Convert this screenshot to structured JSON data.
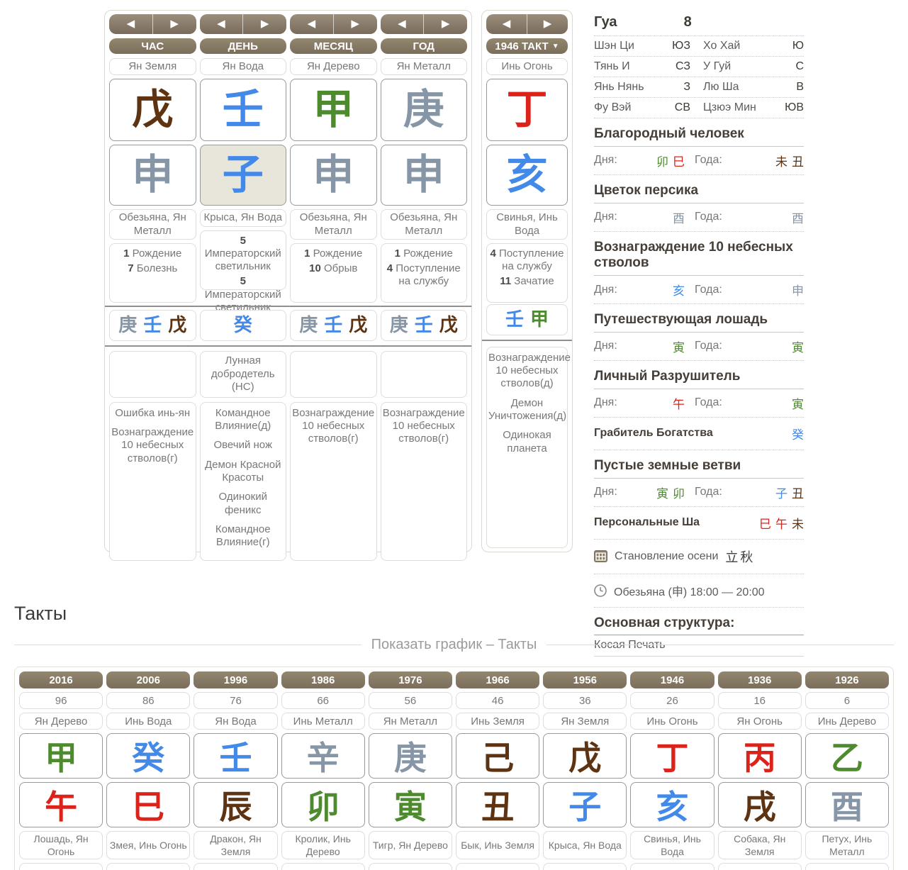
{
  "colors": {
    "wood": "#4e8b2e",
    "fire": "#dc231b",
    "earth": "#5e3312",
    "metal": "#8696a6",
    "water": "#4289e9",
    "ink": "#4a4a4a"
  },
  "nav": {
    "prev": "◀",
    "next": "▶",
    "dropdown": "▼"
  },
  "labels": {
    "day": "Дня:",
    "year": "Года:"
  },
  "pillars": [
    {
      "label": "ЧАС",
      "element": "Ян Земля",
      "stem": {
        "c": "戊",
        "e": "earth"
      },
      "branch": {
        "c": "申",
        "e": "metal"
      },
      "selected": false,
      "animal": "Обезьяна, Ян Металл",
      "qi": [
        {
          "n": "1",
          "t": "Рождение"
        },
        {
          "n": "7",
          "t": "Болезнь"
        }
      ],
      "hidden": [
        {
          "c": "庚",
          "e": "metal"
        },
        {
          "c": "壬",
          "e": "water"
        },
        {
          "c": "戊",
          "e": "earth"
        }
      ],
      "mid": "",
      "features": [
        "Ошибка инь-ян",
        "Вознаграждение 10 небесных стволов(г)"
      ]
    },
    {
      "label": "ДЕНЬ",
      "element": "Ян Вода",
      "stem": {
        "c": "壬",
        "e": "water"
      },
      "branch": {
        "c": "子",
        "e": "water"
      },
      "selected": true,
      "animal": "Крыса, Ян Вода",
      "qi": [
        {
          "n": "5",
          "t": "Императорский светильник"
        },
        {
          "n": "5",
          "t": "Императорский светильник"
        }
      ],
      "hidden": [
        {
          "c": "癸",
          "e": "water"
        }
      ],
      "mid": "Лунная добродетель (НС)",
      "features": [
        "Командное Влияние(д)",
        "Овечий нож",
        "Демон Красной Красоты",
        "Одинокий феникс",
        "Командное Влияние(г)"
      ]
    },
    {
      "label": "МЕСЯЦ",
      "element": "Ян Дерево",
      "stem": {
        "c": "甲",
        "e": "wood"
      },
      "branch": {
        "c": "申",
        "e": "metal"
      },
      "selected": false,
      "animal": "Обезьяна, Ян Металл",
      "qi": [
        {
          "n": "1",
          "t": "Рождение"
        },
        {
          "n": "10",
          "t": "Обрыв"
        }
      ],
      "hidden": [
        {
          "c": "庚",
          "e": "metal"
        },
        {
          "c": "壬",
          "e": "water"
        },
        {
          "c": "戊",
          "e": "earth"
        }
      ],
      "mid": "",
      "features": [
        "Вознаграждение 10 небесных стволов(г)"
      ]
    },
    {
      "label": "ГОД",
      "element": "Ян Металл",
      "stem": {
        "c": "庚",
        "e": "metal"
      },
      "branch": {
        "c": "申",
        "e": "metal"
      },
      "selected": false,
      "animal": "Обезьяна, Ян Металл",
      "qi": [
        {
          "n": "1",
          "t": "Рождение"
        },
        {
          "n": "4",
          "t": "Поступление на службу"
        }
      ],
      "hidden": [
        {
          "c": "庚",
          "e": "metal"
        },
        {
          "c": "壬",
          "e": "water"
        },
        {
          "c": "戊",
          "e": "earth"
        }
      ],
      "mid": "",
      "features": [
        "Вознаграждение 10 небесных стволов(г)"
      ]
    }
  ],
  "takt": {
    "label": "1946 ТАКТ",
    "element": "Инь Огонь",
    "stem": {
      "c": "丁",
      "e": "fire"
    },
    "branch": {
      "c": "亥",
      "e": "water"
    },
    "animal": "Свинья, Инь Вода",
    "qi": [
      {
        "n": "4",
        "t": "Поступление на службу"
      },
      {
        "n": "11",
        "t": "Зачатие"
      }
    ],
    "hidden": [
      {
        "c": "壬",
        "e": "water"
      },
      {
        "c": "甲",
        "e": "wood"
      }
    ],
    "features": [
      "Вознаграждение 10 небесных стволов(д)",
      "Демон Уничтожения(д)",
      "Одинокая планета"
    ]
  },
  "gua": {
    "label": "Гуа",
    "value": "8",
    "rows": [
      [
        "Шэн Ци",
        "ЮЗ",
        "Хо Хай",
        "Ю"
      ],
      [
        "Тянь И",
        "СЗ",
        "У Гуй",
        "С"
      ],
      [
        "Янь Нянь",
        "З",
        "Лю Ша",
        "В"
      ],
      [
        "Фу Вэй",
        "СВ",
        "Цзюэ Мин",
        "ЮВ"
      ]
    ]
  },
  "sections": [
    {
      "type": "dual",
      "title": "Благородный человек",
      "day": [
        {
          "c": "卯",
          "e": "wood"
        },
        {
          "c": "巳",
          "e": "fire"
        }
      ],
      "year": [
        {
          "c": "未",
          "e": "earth"
        },
        {
          "c": "丑",
          "e": "earth"
        }
      ]
    },
    {
      "type": "dual",
      "title": "Цветок персика",
      "day": [
        {
          "c": "酉",
          "e": "metal"
        }
      ],
      "year": [
        {
          "c": "酉",
          "e": "metal"
        }
      ]
    },
    {
      "type": "dual",
      "title": "Вознаграждение 10 небесных стволов",
      "day": [
        {
          "c": "亥",
          "e": "water"
        }
      ],
      "year": [
        {
          "c": "申",
          "e": "metal"
        }
      ]
    },
    {
      "type": "dual",
      "title": "Путешествующая лошадь",
      "day": [
        {
          "c": "寅",
          "e": "wood"
        }
      ],
      "year": [
        {
          "c": "寅",
          "e": "wood"
        }
      ]
    },
    {
      "type": "dual",
      "title": "Личный Разрушитель",
      "day": [
        {
          "c": "午",
          "e": "fire"
        }
      ],
      "year": [
        {
          "c": "寅",
          "e": "wood"
        }
      ]
    },
    {
      "type": "inline",
      "title": "Грабитель Богатства",
      "chars": [
        {
          "c": "癸",
          "e": "water"
        }
      ]
    },
    {
      "type": "dual",
      "title": "Пустые земные ветви",
      "day": [
        {
          "c": "寅",
          "e": "wood"
        },
        {
          "c": "卯",
          "e": "wood"
        }
      ],
      "year": [
        {
          "c": "子",
          "e": "water"
        },
        {
          "c": "丑",
          "e": "earth"
        }
      ]
    },
    {
      "type": "inline",
      "title": "Персональные Ша",
      "chars": [
        {
          "c": "巳",
          "e": "fire"
        },
        {
          "c": "午",
          "e": "fire"
        },
        {
          "c": "未",
          "e": "earth"
        }
      ]
    }
  ],
  "info": [
    {
      "icon": "calendar-icon",
      "text": "Становление осени",
      "cjk": "立秋"
    },
    {
      "icon": "clock-icon",
      "text": "Обезьяна (申) 18:00 — 20:00",
      "cjk": ""
    }
  ],
  "structure": {
    "title": "Основная структура:",
    "value": "Косая Печать"
  },
  "takty": {
    "title": "Такты",
    "legend": "Показать график – Такты",
    "columns": [
      {
        "year": "2016",
        "age": "96",
        "element": "Ян Дерево",
        "stem": {
          "c": "甲",
          "e": "wood"
        },
        "branch": {
          "c": "午",
          "e": "fire"
        },
        "animal": "Лошадь, Ян Огонь"
      },
      {
        "year": "2006",
        "age": "86",
        "element": "Инь Вода",
        "stem": {
          "c": "癸",
          "e": "water"
        },
        "branch": {
          "c": "巳",
          "e": "fire"
        },
        "animal": "Змея, Инь Огонь"
      },
      {
        "year": "1996",
        "age": "76",
        "element": "Ян Вода",
        "stem": {
          "c": "壬",
          "e": "water"
        },
        "branch": {
          "c": "辰",
          "e": "earth"
        },
        "animal": "Дракон, Ян Земля"
      },
      {
        "year": "1986",
        "age": "66",
        "element": "Инь Металл",
        "stem": {
          "c": "辛",
          "e": "metal"
        },
        "branch": {
          "c": "卯",
          "e": "wood"
        },
        "animal": "Кролик, Инь Дерево"
      },
      {
        "year": "1976",
        "age": "56",
        "element": "Ян Металл",
        "stem": {
          "c": "庚",
          "e": "metal"
        },
        "branch": {
          "c": "寅",
          "e": "wood"
        },
        "animal": "Тигр, Ян Дерево"
      },
      {
        "year": "1966",
        "age": "46",
        "element": "Инь Земля",
        "stem": {
          "c": "己",
          "e": "earth"
        },
        "branch": {
          "c": "丑",
          "e": "earth"
        },
        "animal": "Бык, Инь Земля"
      },
      {
        "year": "1956",
        "age": "36",
        "element": "Ян Земля",
        "stem": {
          "c": "戊",
          "e": "earth"
        },
        "branch": {
          "c": "子",
          "e": "water"
        },
        "animal": "Крыса, Ян Вода"
      },
      {
        "year": "1946",
        "age": "26",
        "element": "Инь Огонь",
        "stem": {
          "c": "丁",
          "e": "fire"
        },
        "branch": {
          "c": "亥",
          "e": "water"
        },
        "animal": "Свинья, Инь Вода"
      },
      {
        "year": "1936",
        "age": "16",
        "element": "Ян Огонь",
        "stem": {
          "c": "丙",
          "e": "fire"
        },
        "branch": {
          "c": "戌",
          "e": "earth"
        },
        "animal": "Собака, Ян Земля"
      },
      {
        "year": "1926",
        "age": "6",
        "element": "Инь Дерево",
        "stem": {
          "c": "乙",
          "e": "wood"
        },
        "branch": {
          "c": "酉",
          "e": "metal"
        },
        "animal": "Петух, Инь Металл"
      }
    ]
  }
}
